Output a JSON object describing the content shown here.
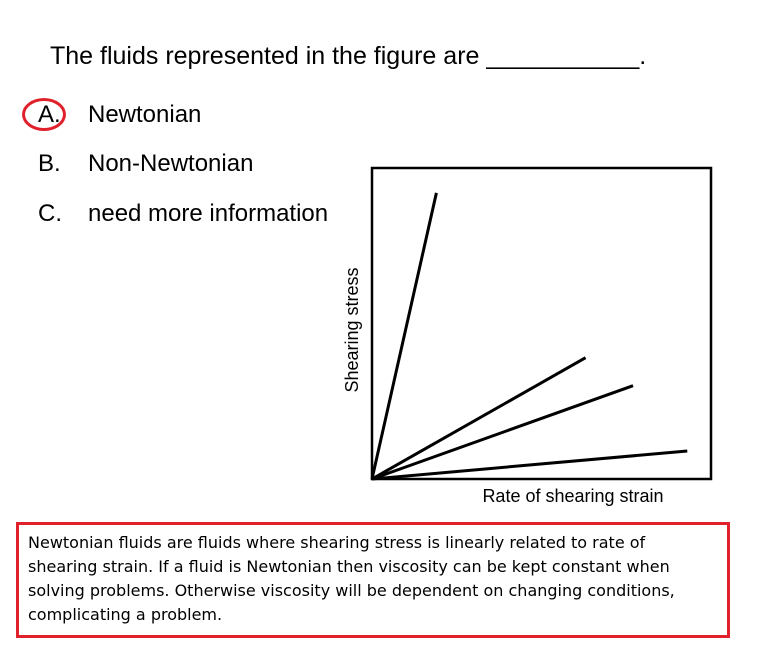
{
  "question": {
    "text": "The fluids represented in the figure are ___________."
  },
  "options": [
    {
      "letter": "A.",
      "text": "Newtonian",
      "selected": true
    },
    {
      "letter": "B.",
      "text": "Non-Newtonian",
      "selected": false
    },
    {
      "letter": "C.",
      "text": "need more information",
      "selected": false
    }
  ],
  "highlight_color": "#e0202b",
  "chart_data": {
    "type": "line",
    "xlabel": "Rate of shearing strain",
    "ylabel": "Shearing stress",
    "xlim": [
      0,
      1
    ],
    "ylim": [
      0,
      1
    ],
    "series": [
      {
        "points": [
          [
            0,
            0
          ],
          [
            0.19,
            0.92
          ]
        ]
      },
      {
        "points": [
          [
            0,
            0
          ],
          [
            0.63,
            0.39
          ]
        ]
      },
      {
        "points": [
          [
            0,
            0
          ],
          [
            0.77,
            0.3
          ]
        ]
      },
      {
        "points": [
          [
            0,
            0
          ],
          [
            0.93,
            0.09
          ]
        ]
      }
    ]
  },
  "explanation": {
    "text": "Newtonian fluids are fluids where shearing stress is linearly related to rate of shearing strain. If a fluid is Newtonian then viscosity can be kept constant when solving problems. Otherwise viscosity will be dependent on changing conditions, complicating a problem."
  }
}
